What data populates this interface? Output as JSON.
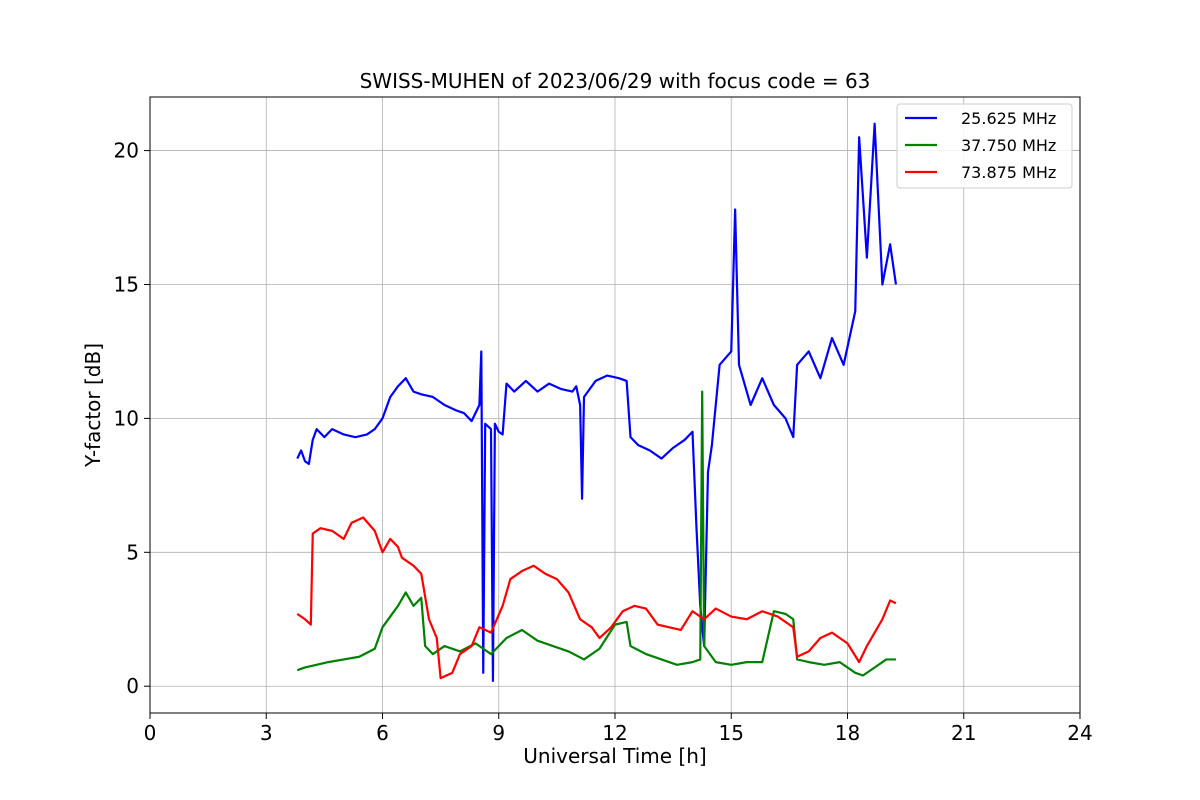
{
  "chart_data": {
    "type": "line",
    "title": "SWISS-MUHEN of 2023/06/29 with focus code = 63",
    "xlabel": "Universal Time [h]",
    "ylabel": "Y-factor [dB]",
    "xlim": [
      0,
      24
    ],
    "ylim": [
      -1,
      22
    ],
    "xticks": [
      0,
      3,
      6,
      9,
      12,
      15,
      18,
      21,
      24
    ],
    "yticks": [
      0,
      5,
      10,
      15,
      20
    ],
    "grid": true,
    "legend_position": "top-right",
    "series": [
      {
        "name": "25.625 MHz",
        "color": "#0000ff",
        "points": [
          [
            3.8,
            8.5
          ],
          [
            3.9,
            8.8
          ],
          [
            4.0,
            8.4
          ],
          [
            4.1,
            8.3
          ],
          [
            4.2,
            9.2
          ],
          [
            4.3,
            9.6
          ],
          [
            4.5,
            9.3
          ],
          [
            4.7,
            9.6
          ],
          [
            5.0,
            9.4
          ],
          [
            5.3,
            9.3
          ],
          [
            5.6,
            9.4
          ],
          [
            5.8,
            9.6
          ],
          [
            6.0,
            10.0
          ],
          [
            6.2,
            10.8
          ],
          [
            6.4,
            11.2
          ],
          [
            6.6,
            11.5
          ],
          [
            6.8,
            11.0
          ],
          [
            7.0,
            10.9
          ],
          [
            7.3,
            10.8
          ],
          [
            7.6,
            10.5
          ],
          [
            7.9,
            10.3
          ],
          [
            8.1,
            10.2
          ],
          [
            8.3,
            9.9
          ],
          [
            8.5,
            10.5
          ],
          [
            8.55,
            12.5
          ],
          [
            8.6,
            0.5
          ],
          [
            8.65,
            9.8
          ],
          [
            8.8,
            9.6
          ],
          [
            8.85,
            0.2
          ],
          [
            8.9,
            9.8
          ],
          [
            9.0,
            9.5
          ],
          [
            9.1,
            9.4
          ],
          [
            9.2,
            11.3
          ],
          [
            9.4,
            11.0
          ],
          [
            9.7,
            11.4
          ],
          [
            10.0,
            11.0
          ],
          [
            10.3,
            11.3
          ],
          [
            10.6,
            11.1
          ],
          [
            10.9,
            11.0
          ],
          [
            11.0,
            11.2
          ],
          [
            11.1,
            10.5
          ],
          [
            11.15,
            7.0
          ],
          [
            11.2,
            10.8
          ],
          [
            11.5,
            11.4
          ],
          [
            11.8,
            11.6
          ],
          [
            12.1,
            11.5
          ],
          [
            12.3,
            11.4
          ],
          [
            12.4,
            9.3
          ],
          [
            12.6,
            9.0
          ],
          [
            12.9,
            8.8
          ],
          [
            13.2,
            8.5
          ],
          [
            13.5,
            8.9
          ],
          [
            13.8,
            9.2
          ],
          [
            14.0,
            9.5
          ],
          [
            14.1,
            6.0
          ],
          [
            14.2,
            3.0
          ],
          [
            14.3,
            1.5
          ],
          [
            14.4,
            8.0
          ],
          [
            14.5,
            9.0
          ],
          [
            14.7,
            12.0
          ],
          [
            15.0,
            12.5
          ],
          [
            15.1,
            17.8
          ],
          [
            15.2,
            12.0
          ],
          [
            15.5,
            10.5
          ],
          [
            15.8,
            11.5
          ],
          [
            16.1,
            10.5
          ],
          [
            16.4,
            10.0
          ],
          [
            16.6,
            9.3
          ],
          [
            16.7,
            12.0
          ],
          [
            17.0,
            12.5
          ],
          [
            17.3,
            11.5
          ],
          [
            17.6,
            13.0
          ],
          [
            17.9,
            12.0
          ],
          [
            18.2,
            14.0
          ],
          [
            18.3,
            20.5
          ],
          [
            18.5,
            16.0
          ],
          [
            18.7,
            21.0
          ],
          [
            18.9,
            15.0
          ],
          [
            19.1,
            16.5
          ],
          [
            19.25,
            15.0
          ]
        ]
      },
      {
        "name": "37.750 MHz",
        "color": "#008000",
        "points": [
          [
            3.8,
            0.6
          ],
          [
            4.0,
            0.7
          ],
          [
            4.3,
            0.8
          ],
          [
            4.6,
            0.9
          ],
          [
            5.0,
            1.0
          ],
          [
            5.4,
            1.1
          ],
          [
            5.8,
            1.4
          ],
          [
            6.0,
            2.2
          ],
          [
            6.2,
            2.6
          ],
          [
            6.4,
            3.0
          ],
          [
            6.6,
            3.5
          ],
          [
            6.8,
            3.0
          ],
          [
            7.0,
            3.3
          ],
          [
            7.1,
            1.5
          ],
          [
            7.3,
            1.2
          ],
          [
            7.6,
            1.5
          ],
          [
            8.0,
            1.3
          ],
          [
            8.4,
            1.6
          ],
          [
            8.8,
            1.2
          ],
          [
            9.2,
            1.8
          ],
          [
            9.6,
            2.1
          ],
          [
            10.0,
            1.7
          ],
          [
            10.4,
            1.5
          ],
          [
            10.8,
            1.3
          ],
          [
            11.2,
            1.0
          ],
          [
            11.6,
            1.4
          ],
          [
            12.0,
            2.3
          ],
          [
            12.3,
            2.4
          ],
          [
            12.4,
            1.5
          ],
          [
            12.8,
            1.2
          ],
          [
            13.2,
            1.0
          ],
          [
            13.6,
            0.8
          ],
          [
            14.0,
            0.9
          ],
          [
            14.2,
            1.0
          ],
          [
            14.25,
            11.0
          ],
          [
            14.3,
            1.5
          ],
          [
            14.6,
            0.9
          ],
          [
            15.0,
            0.8
          ],
          [
            15.4,
            0.9
          ],
          [
            15.8,
            0.9
          ],
          [
            16.1,
            2.8
          ],
          [
            16.4,
            2.7
          ],
          [
            16.6,
            2.5
          ],
          [
            16.7,
            1.0
          ],
          [
            17.0,
            0.9
          ],
          [
            17.4,
            0.8
          ],
          [
            17.8,
            0.9
          ],
          [
            18.2,
            0.5
          ],
          [
            18.4,
            0.4
          ],
          [
            18.7,
            0.7
          ],
          [
            19.0,
            1.0
          ],
          [
            19.25,
            1.0
          ]
        ]
      },
      {
        "name": "73.875 MHz",
        "color": "#ff0000",
        "points": [
          [
            3.8,
            2.7
          ],
          [
            4.0,
            2.5
          ],
          [
            4.15,
            2.3
          ],
          [
            4.2,
            5.7
          ],
          [
            4.4,
            5.9
          ],
          [
            4.7,
            5.8
          ],
          [
            5.0,
            5.5
          ],
          [
            5.2,
            6.1
          ],
          [
            5.5,
            6.3
          ],
          [
            5.8,
            5.8
          ],
          [
            6.0,
            5.0
          ],
          [
            6.2,
            5.5
          ],
          [
            6.4,
            5.2
          ],
          [
            6.5,
            4.8
          ],
          [
            6.8,
            4.5
          ],
          [
            7.0,
            4.2
          ],
          [
            7.2,
            2.5
          ],
          [
            7.4,
            1.8
          ],
          [
            7.5,
            0.3
          ],
          [
            7.8,
            0.5
          ],
          [
            8.0,
            1.2
          ],
          [
            8.3,
            1.5
          ],
          [
            8.5,
            2.2
          ],
          [
            8.8,
            2.0
          ],
          [
            9.1,
            3.0
          ],
          [
            9.3,
            4.0
          ],
          [
            9.6,
            4.3
          ],
          [
            9.9,
            4.5
          ],
          [
            10.2,
            4.2
          ],
          [
            10.5,
            4.0
          ],
          [
            10.8,
            3.5
          ],
          [
            11.1,
            2.5
          ],
          [
            11.4,
            2.2
          ],
          [
            11.6,
            1.8
          ],
          [
            11.9,
            2.2
          ],
          [
            12.2,
            2.8
          ],
          [
            12.5,
            3.0
          ],
          [
            12.8,
            2.9
          ],
          [
            13.1,
            2.3
          ],
          [
            13.4,
            2.2
          ],
          [
            13.7,
            2.1
          ],
          [
            14.0,
            2.8
          ],
          [
            14.3,
            2.5
          ],
          [
            14.6,
            2.9
          ],
          [
            15.0,
            2.6
          ],
          [
            15.4,
            2.5
          ],
          [
            15.8,
            2.8
          ],
          [
            16.2,
            2.6
          ],
          [
            16.5,
            2.3
          ],
          [
            16.6,
            2.2
          ],
          [
            16.7,
            1.1
          ],
          [
            17.0,
            1.3
          ],
          [
            17.3,
            1.8
          ],
          [
            17.6,
            2.0
          ],
          [
            18.0,
            1.6
          ],
          [
            18.3,
            0.9
          ],
          [
            18.5,
            1.5
          ],
          [
            18.7,
            2.0
          ],
          [
            18.9,
            2.5
          ],
          [
            19.1,
            3.2
          ],
          [
            19.25,
            3.1
          ]
        ]
      }
    ]
  }
}
